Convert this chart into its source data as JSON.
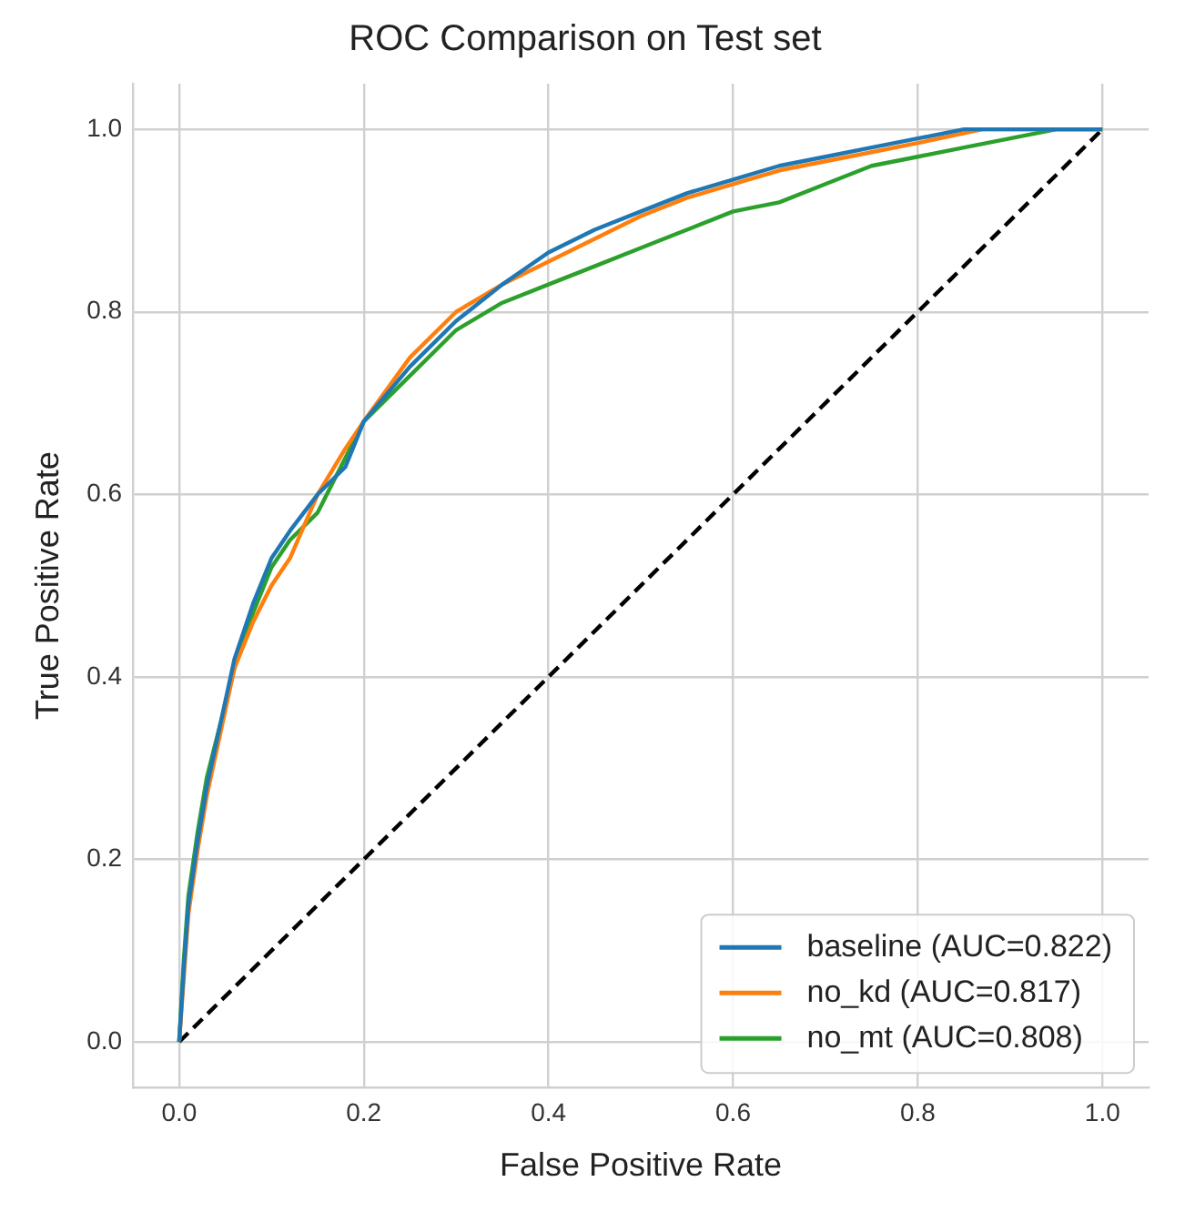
{
  "chart_data": {
    "type": "line",
    "title": "ROC Comparison on Test set",
    "xlabel": "False Positive Rate",
    "ylabel": "True Positive Rate",
    "xlim": [
      -0.05,
      1.05
    ],
    "ylim": [
      -0.05,
      1.05
    ],
    "xticks": [
      {
        "value": 0,
        "label": "0.0"
      },
      {
        "value": 0.2,
        "label": "0.2"
      },
      {
        "value": 0.4,
        "label": "0.4"
      },
      {
        "value": 0.6,
        "label": "0.6"
      },
      {
        "value": 0.8,
        "label": "0.8"
      },
      {
        "value": 1,
        "label": "1.0"
      }
    ],
    "yticks": [
      {
        "value": 0,
        "label": "0.0"
      },
      {
        "value": 0.2,
        "label": "0.2"
      },
      {
        "value": 0.4,
        "label": "0.4"
      },
      {
        "value": 0.6,
        "label": "0.6"
      },
      {
        "value": 0.8,
        "label": "0.8"
      },
      {
        "value": 1,
        "label": "1.0"
      }
    ],
    "grid": true,
    "legend": "bottom right",
    "marker": "none",
    "series": [
      {
        "name": "baseline (AUC=0.822)",
        "color": "#1f77b4",
        "line_style": "solid",
        "x": [
          0,
          0.005,
          0.01,
          0.02,
          0.03,
          0.045,
          0.06,
          0.08,
          0.1,
          0.12,
          0.15,
          0.18,
          0.2,
          0.25,
          0.3,
          0.35,
          0.4,
          0.45,
          0.5,
          0.55,
          0.6,
          0.65,
          0.7,
          0.75,
          0.8,
          0.85,
          1
        ],
        "values": [
          0,
          0.08,
          0.15,
          0.22,
          0.28,
          0.35,
          0.42,
          0.48,
          0.53,
          0.56,
          0.6,
          0.63,
          0.68,
          0.74,
          0.79,
          0.83,
          0.865,
          0.89,
          0.91,
          0.93,
          0.945,
          0.96,
          0.97,
          0.98,
          0.99,
          1,
          1
        ]
      },
      {
        "name": "no_kd (AUC=0.817)",
        "color": "#ff7f0e",
        "line_style": "solid",
        "x": [
          0,
          0.005,
          0.01,
          0.02,
          0.03,
          0.045,
          0.06,
          0.08,
          0.1,
          0.12,
          0.15,
          0.18,
          0.2,
          0.25,
          0.3,
          0.35,
          0.4,
          0.45,
          0.5,
          0.55,
          0.6,
          0.65,
          0.7,
          0.75,
          0.8,
          0.87,
          1
        ],
        "values": [
          0,
          0.07,
          0.14,
          0.21,
          0.27,
          0.34,
          0.41,
          0.46,
          0.5,
          0.53,
          0.6,
          0.65,
          0.68,
          0.75,
          0.8,
          0.83,
          0.855,
          0.88,
          0.905,
          0.925,
          0.94,
          0.955,
          0.965,
          0.975,
          0.985,
          1,
          1
        ]
      },
      {
        "name": "no_mt (AUC=0.808)",
        "color": "#2ca02c",
        "line_style": "solid",
        "x": [
          0,
          0.005,
          0.01,
          0.02,
          0.03,
          0.045,
          0.06,
          0.08,
          0.1,
          0.12,
          0.15,
          0.18,
          0.2,
          0.25,
          0.3,
          0.35,
          0.4,
          0.45,
          0.5,
          0.55,
          0.6,
          0.65,
          0.7,
          0.75,
          0.8,
          0.85,
          0.9,
          0.95,
          1
        ],
        "values": [
          0,
          0.09,
          0.16,
          0.23,
          0.29,
          0.35,
          0.41,
          0.47,
          0.52,
          0.55,
          0.58,
          0.64,
          0.68,
          0.73,
          0.78,
          0.81,
          0.83,
          0.85,
          0.87,
          0.89,
          0.91,
          0.92,
          0.94,
          0.96,
          0.97,
          0.98,
          0.99,
          1,
          1
        ]
      },
      {
        "color": "#000000",
        "line_style": "dashed",
        "x": [
          0,
          1
        ],
        "values": [
          0,
          1
        ]
      }
    ]
  }
}
